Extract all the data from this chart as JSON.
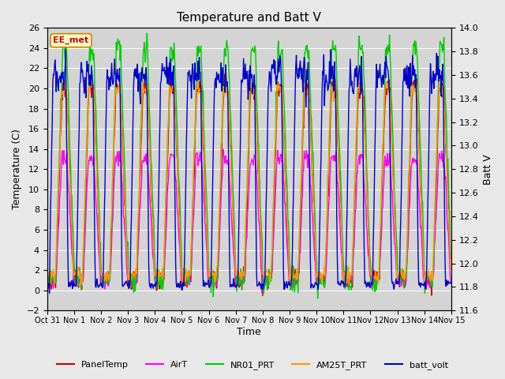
{
  "title": "Temperature and Batt V",
  "xlabel": "Time",
  "ylabel_left": "Temperature (C)",
  "ylabel_right": "Batt V",
  "ylim_left": [
    -2,
    26
  ],
  "ylim_right": [
    11.6,
    14.0
  ],
  "yticks_left": [
    -2,
    0,
    2,
    4,
    6,
    8,
    10,
    12,
    14,
    16,
    18,
    20,
    22,
    24,
    26
  ],
  "yticks_right": [
    11.6,
    11.8,
    12.0,
    12.2,
    12.4,
    12.6,
    12.8,
    13.0,
    13.2,
    13.4,
    13.6,
    13.8,
    14.0
  ],
  "xtick_labels": [
    "Oct 31",
    "Nov 1",
    "Nov 2",
    "Nov 3",
    "Nov 4",
    "Nov 5",
    "Nov 6",
    "Nov 7",
    "Nov 8",
    "Nov 9",
    "Nov 10",
    "Nov 11",
    "Nov 12",
    "Nov 13",
    "Nov 14",
    "Nov 15"
  ],
  "n_days": 15,
  "fig_facecolor": "#e8e8e8",
  "plot_bg_color": "#d4d4d4",
  "legend_label": "EE_met",
  "series_colors": {
    "PanelTemp": "#cc0000",
    "AirT": "#ff00ff",
    "NR01_PRT": "#00cc00",
    "AM25T_PRT": "#ff9900",
    "batt_volt": "#0000cc"
  },
  "line_width": 1.0
}
